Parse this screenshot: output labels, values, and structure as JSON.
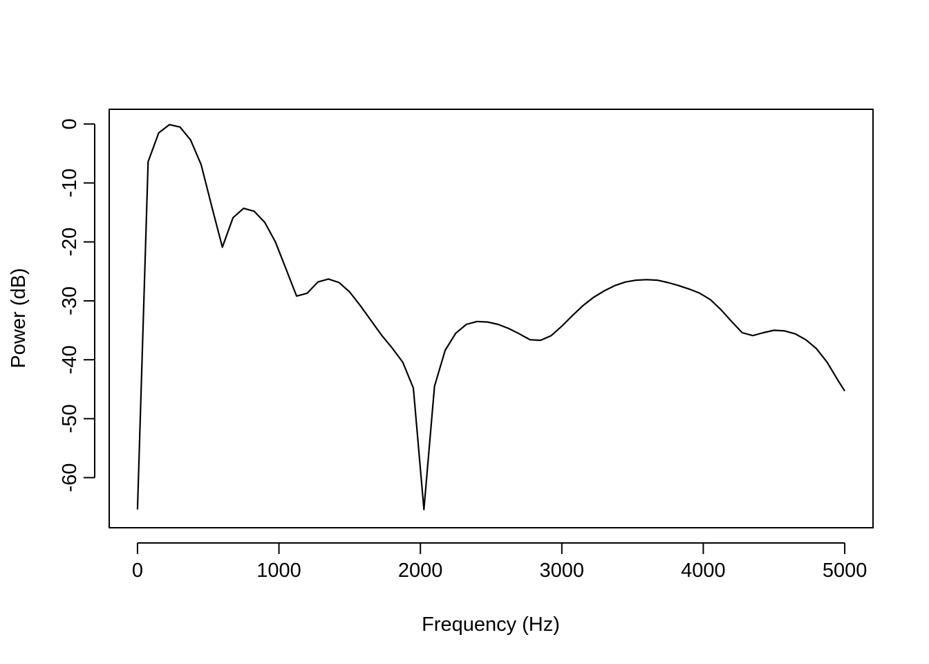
{
  "chart_data": {
    "type": "line",
    "title": "",
    "xlabel": "Frequency (Hz)",
    "ylabel": "Power (dB)",
    "xlim": [
      -200,
      5200
    ],
    "ylim": [
      -68.5,
      2.5
    ],
    "x_ticks": [
      0,
      1000,
      2000,
      3000,
      4000,
      5000
    ],
    "x_tick_labels": [
      "0",
      "1000",
      "2000",
      "3000",
      "4000",
      "5000"
    ],
    "y_ticks": [
      0,
      -10,
      -20,
      -30,
      -40,
      -50,
      -60
    ],
    "y_tick_labels": [
      "0",
      "-10",
      "-20",
      "-30",
      "-40",
      "-50",
      "-60"
    ],
    "grid": false,
    "legend": "none",
    "line_color": "#000000",
    "series": [
      {
        "x": [
          0,
          75,
          150,
          225,
          300,
          375,
          450,
          525,
          600,
          675,
          750,
          825,
          900,
          975,
          1050,
          1125,
          1200,
          1275,
          1350,
          1425,
          1500,
          1575,
          1650,
          1725,
          1800,
          1875,
          1950,
          2025,
          2100,
          2175,
          2250,
          2325,
          2400,
          2475,
          2550,
          2625,
          2700,
          2775,
          2850,
          2925,
          3000,
          3075,
          3150,
          3225,
          3300,
          3375,
          3450,
          3525,
          3600,
          3675,
          3750,
          3825,
          3900,
          3975,
          4050,
          4125,
          4200,
          4275,
          4350,
          4425,
          4500,
          4575,
          4650,
          4725,
          4800,
          4875,
          4950,
          5000
        ],
        "y": [
          -65.4,
          -6.4,
          -1.5,
          -0.1,
          -0.5,
          -2.7,
          -6.9,
          -14.0,
          -20.9,
          -15.9,
          -14.3,
          -14.8,
          -16.7,
          -20.0,
          -24.6,
          -29.2,
          -28.7,
          -26.8,
          -26.3,
          -26.9,
          -28.5,
          -30.8,
          -33.3,
          -35.8,
          -38.0,
          -40.4,
          -44.8,
          -65.4,
          -44.5,
          -38.4,
          -35.5,
          -34.0,
          -33.5,
          -33.6,
          -34.0,
          -34.7,
          -35.6,
          -36.6,
          -36.7,
          -35.9,
          -34.3,
          -32.5,
          -30.8,
          -29.4,
          -28.3,
          -27.4,
          -26.8,
          -26.5,
          -26.4,
          -26.5,
          -26.9,
          -27.4,
          -28.0,
          -28.7,
          -29.8,
          -31.5,
          -33.5,
          -35.4,
          -35.9,
          -35.4,
          -35.0,
          -35.1,
          -35.6,
          -36.6,
          -38.1,
          -40.4,
          -43.4,
          -45.3
        ]
      }
    ]
  }
}
